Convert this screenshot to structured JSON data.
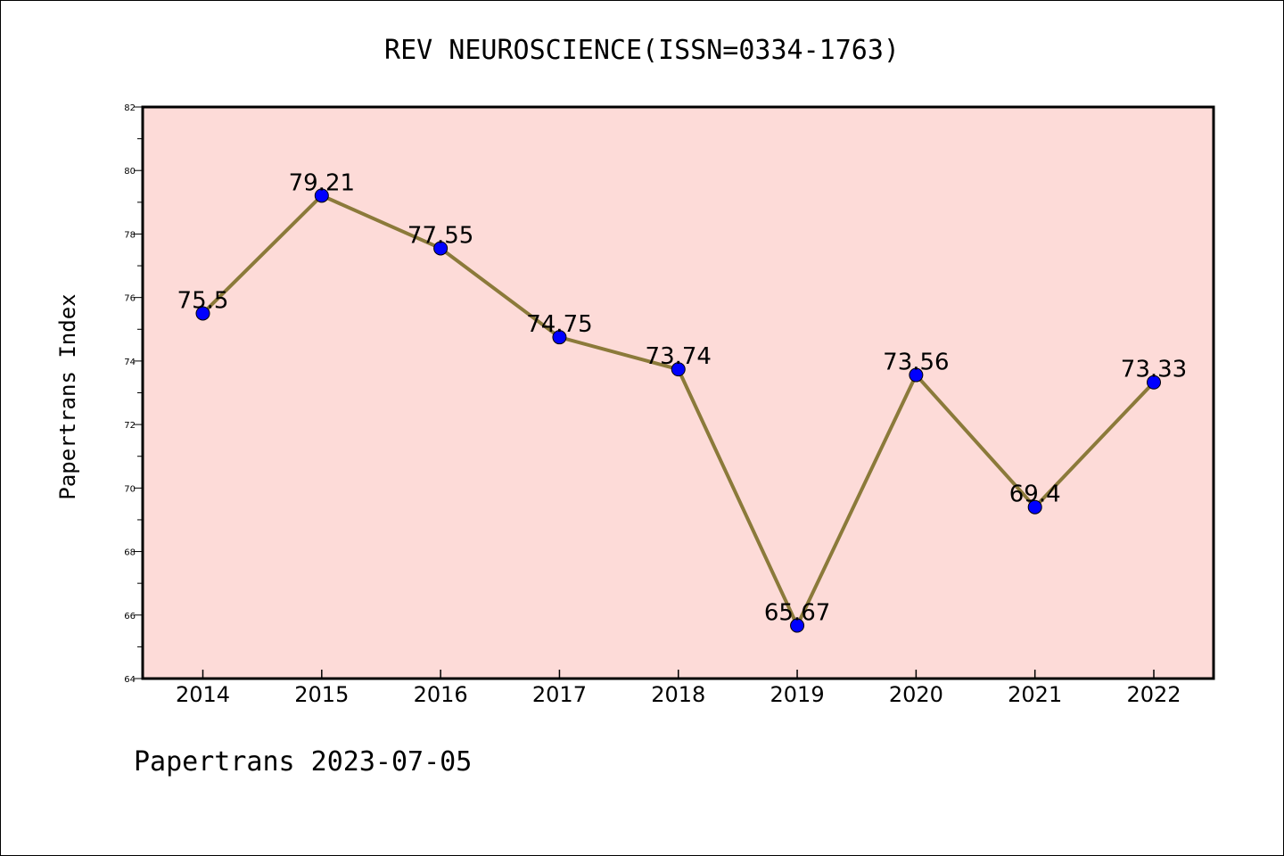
{
  "title": "REV NEUROSCIENCE(ISSN=0334-1763)",
  "footer": "Papertrans 2023-07-05",
  "colors": {
    "plot_background": "#fddbd8",
    "line": "#8b7a3a",
    "marker": "#0000ff"
  },
  "chart_data": {
    "type": "line",
    "title": "REV NEUROSCIENCE(ISSN=0334-1763)",
    "xlabel": "",
    "ylabel": "Papertrans Index",
    "categories": [
      "2014",
      "2015",
      "2016",
      "2017",
      "2018",
      "2019",
      "2020",
      "2021",
      "2022"
    ],
    "series": [
      {
        "values": [
          75.5,
          79.21,
          77.55,
          74.75,
          73.74,
          65.67,
          73.56,
          69.4,
          73.33
        ],
        "labels": [
          "75.5",
          "79.21",
          "77.55",
          "74.75",
          "73.74",
          "65.67",
          "73.56",
          "69.4",
          "73.33"
        ]
      }
    ],
    "ylim": [
      64,
      82
    ],
    "yticks": [
      "64",
      "66",
      "68",
      "70",
      "72",
      "74",
      "76",
      "78",
      "80",
      "82"
    ],
    "grid": false,
    "legend": "none"
  }
}
